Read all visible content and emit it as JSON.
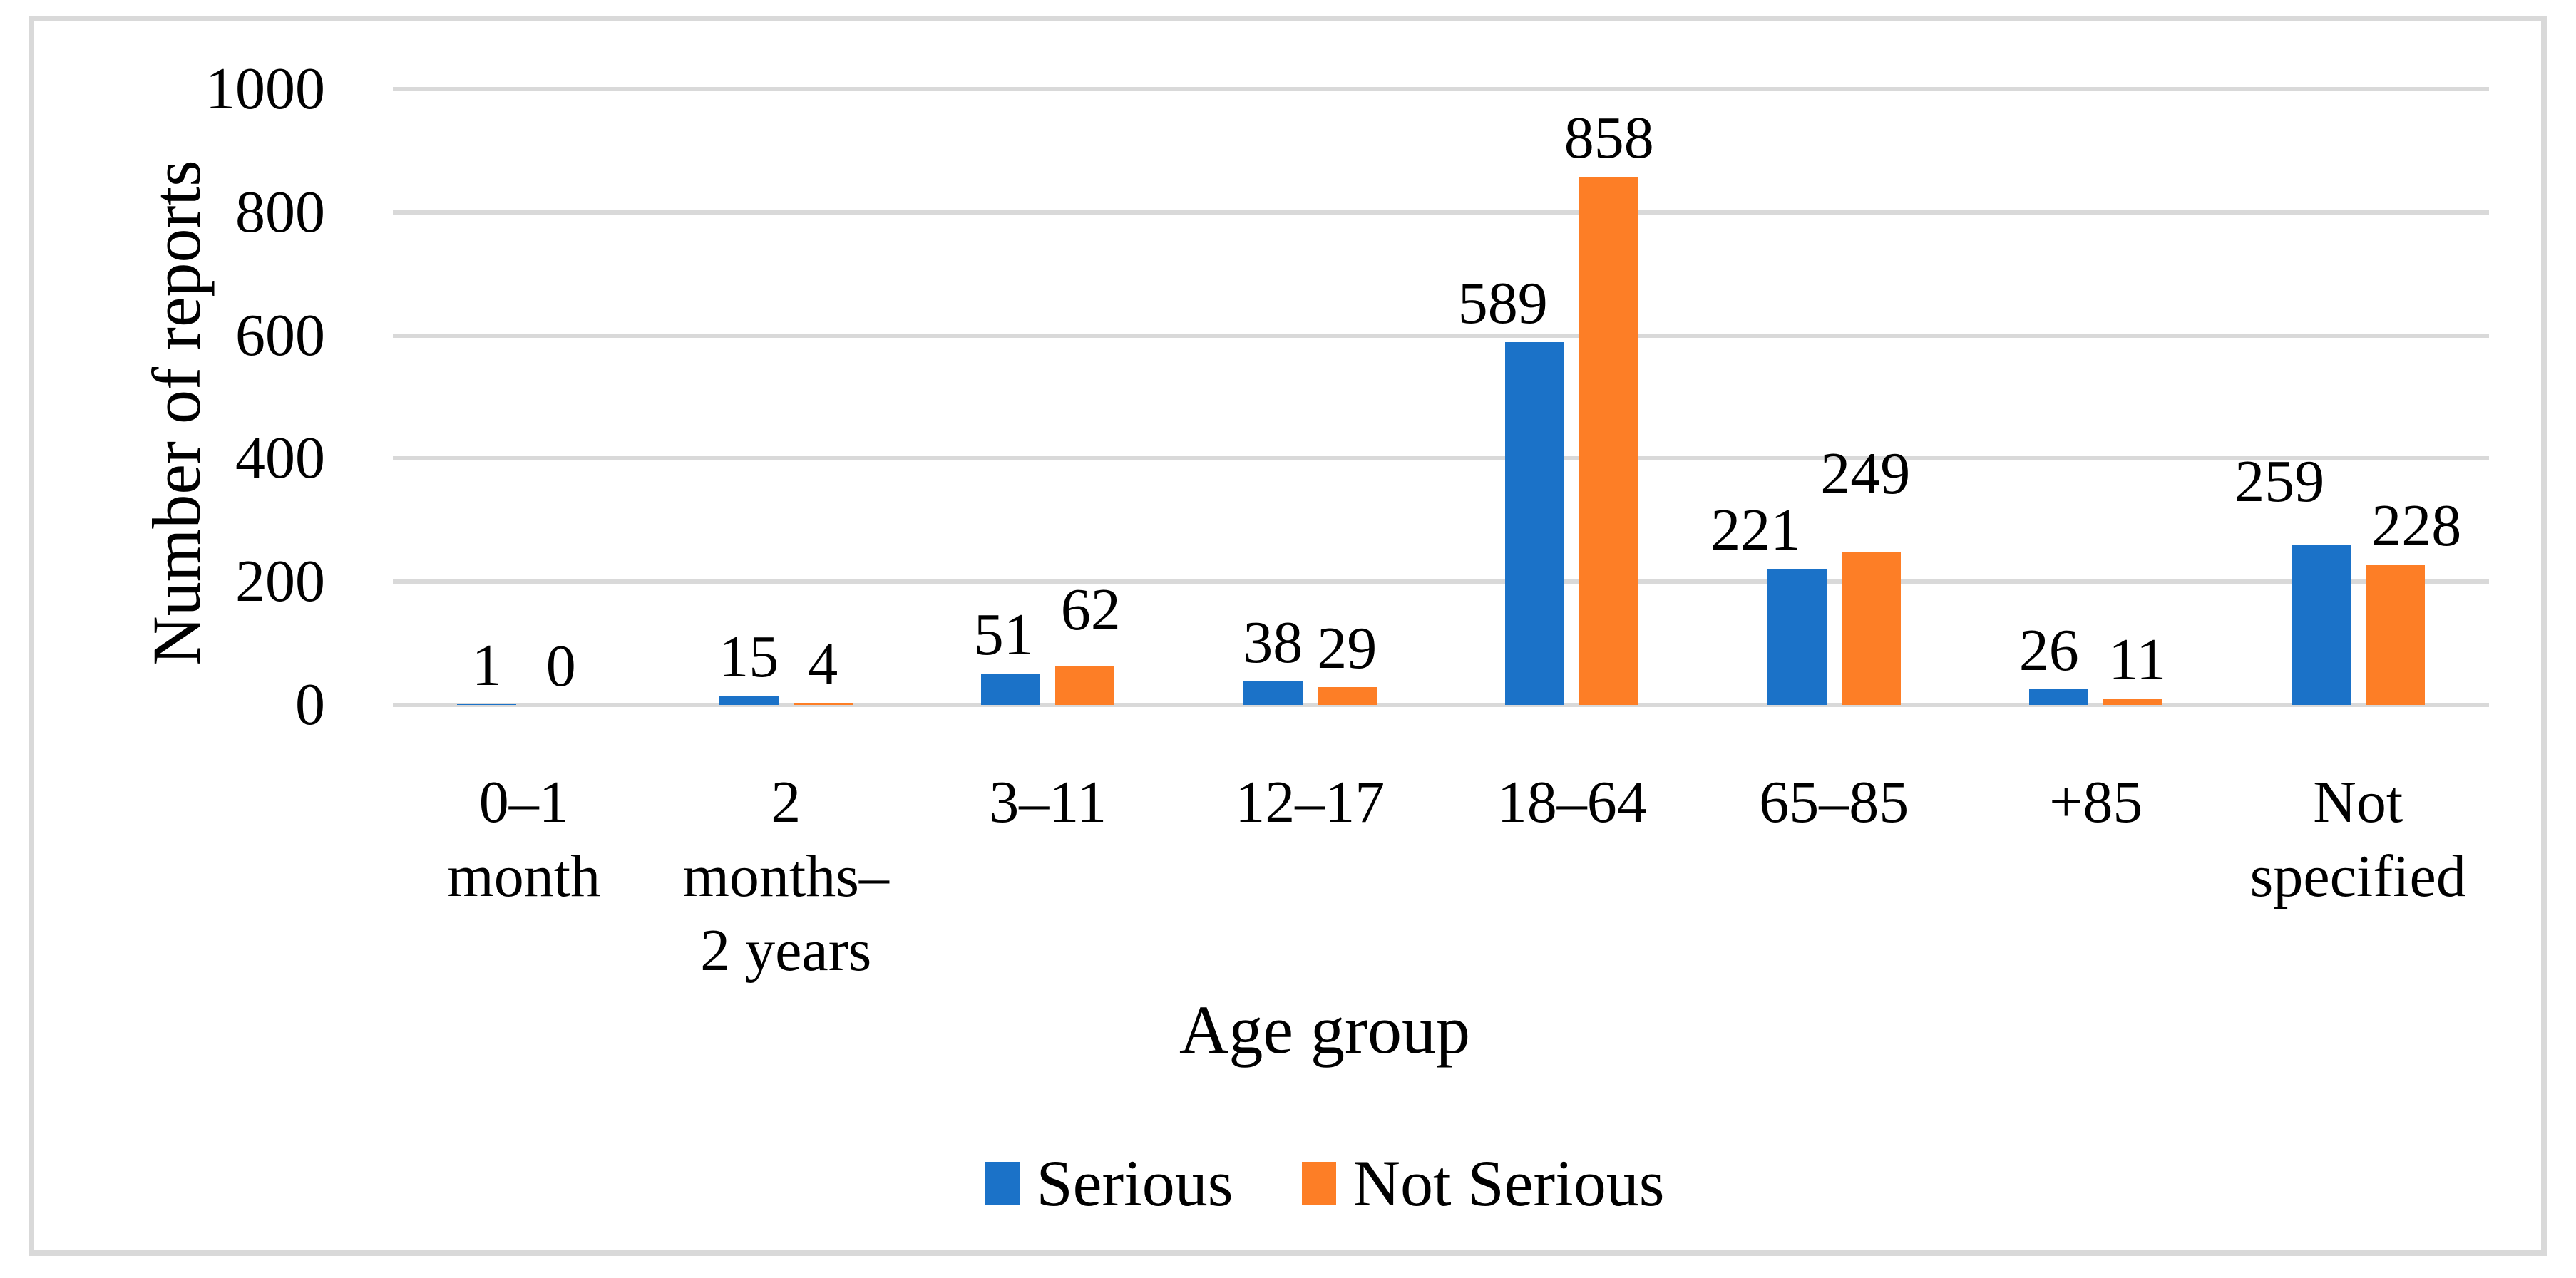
{
  "chart_data": {
    "type": "bar",
    "title": "",
    "xlabel": "Age group",
    "ylabel": "Number of reports",
    "categories": [
      "0–1 month",
      "2 months–2 years",
      "3–11",
      "12–17",
      "18–64",
      "65–85",
      "+85",
      "Not specified"
    ],
    "category_label_lines": [
      [
        "0–1",
        "month"
      ],
      [
        "2",
        "months–",
        "2 years"
      ],
      [
        "3–11"
      ],
      [
        "12–17"
      ],
      [
        "18–64"
      ],
      [
        "65–85"
      ],
      [
        "+85"
      ],
      [
        "Not",
        "specified"
      ]
    ],
    "series": [
      {
        "name": "Serious",
        "color": "#1b72c8",
        "values": [
          1,
          15,
          51,
          38,
          589,
          221,
          26,
          259
        ]
      },
      {
        "name": "Not Serious",
        "color": "#fd7e26",
        "values": [
          0,
          4,
          62,
          29,
          858,
          249,
          11,
          228
        ]
      }
    ],
    "ylim": [
      0,
      1000
    ],
    "yticks": [
      0,
      200,
      400,
      600,
      800,
      1000
    ],
    "grid": "horizontal-only",
    "gridline_color": "#d9d9d9",
    "frame_color": "#d9d9d9",
    "data_labels": true,
    "legend_position": "bottom-center",
    "legend": [
      "Serious",
      "Not Serious"
    ]
  }
}
